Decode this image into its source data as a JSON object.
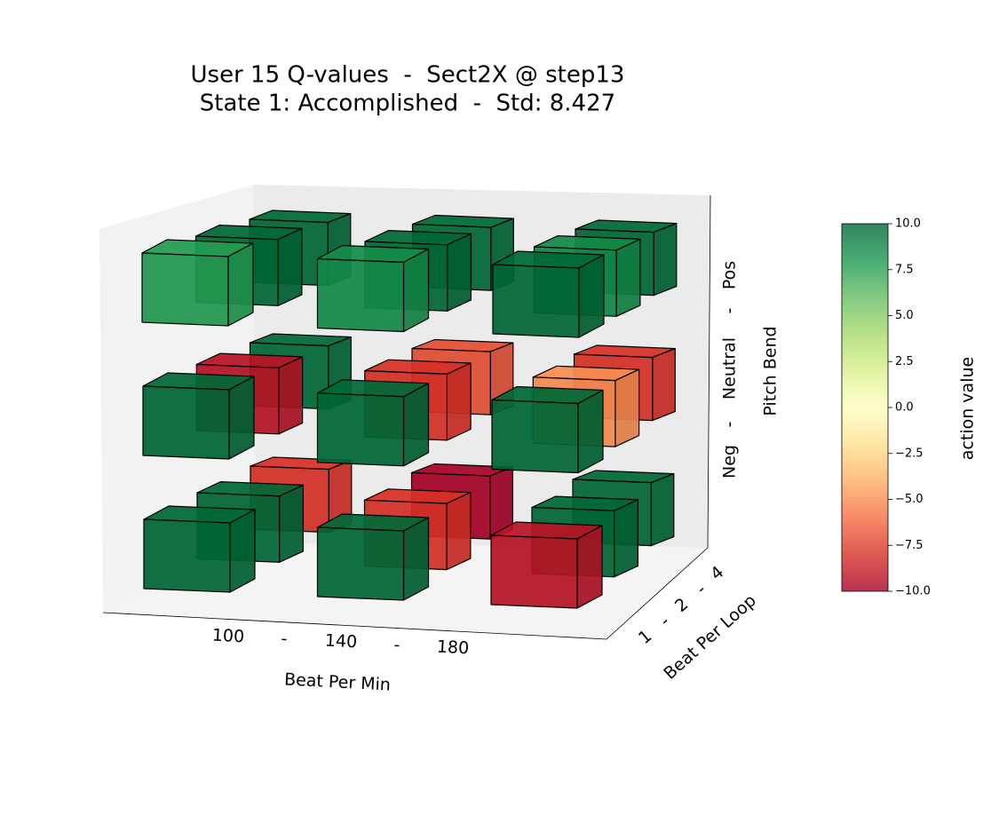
{
  "chart_data": {
    "type": "voxel3d",
    "title": "User 15 Q-values  -  Sect2X @ step13",
    "subtitle": "State 1: Accomplished  -  Std: 8.427",
    "x_label": "Beat Per Min",
    "y_label": "Beat Per Loop",
    "z_label": "Pitch Bend",
    "x_ticklabels": [
      "100",
      "-",
      "140",
      "-",
      "180"
    ],
    "y_ticklabels": [
      "1",
      "-",
      "2",
      "-",
      "4"
    ],
    "z_ticklabels": [
      "Neg",
      "-",
      "Neutral",
      "-",
      "Pos"
    ],
    "values": [
      [
        [
          10,
          10,
          -9.2
        ],
        [
          10,
          -8,
          10
        ],
        [
          -8,
          -9.9,
          10
        ]
      ],
      [
        [
          10,
          10,
          10
        ],
        [
          -9.2,
          -8,
          -5
        ],
        [
          10,
          -7,
          -8
        ]
      ],
      [
        [
          7.8,
          8.5,
          10
        ],
        [
          10,
          10,
          8.6
        ],
        [
          10,
          10,
          10
        ]
      ]
    ],
    "colormap": "RdYlGn",
    "clim": [
      -10,
      10
    ],
    "colorbar_label": "action value",
    "colorbar_ticks": [
      {
        "value": 10,
        "label": "10.0"
      },
      {
        "value": 7.5,
        "label": "7.5"
      },
      {
        "value": 5,
        "label": "5.0"
      },
      {
        "value": 2.5,
        "label": "2.5"
      },
      {
        "value": 0,
        "label": "0.0"
      },
      {
        "value": -2.5,
        "label": "−2.5"
      },
      {
        "value": -5,
        "label": "−5.0"
      },
      {
        "value": -7.5,
        "label": "−7.5"
      },
      {
        "value": -10,
        "label": "−10.0"
      }
    ]
  }
}
